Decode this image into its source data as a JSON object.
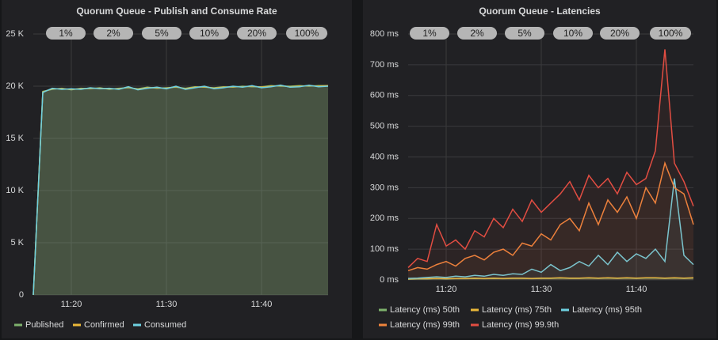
{
  "chart_data": [
    {
      "type": "line",
      "title": "Quorum Queue - Publish and Consume Rate",
      "area": true,
      "grid": true,
      "annotations": [
        "1%",
        "2%",
        "5%",
        "10%",
        "20%",
        "100%"
      ],
      "x": [
        "11:16",
        "11:17",
        "11:18",
        "11:19",
        "11:20",
        "11:21",
        "11:22",
        "11:23",
        "11:24",
        "11:25",
        "11:26",
        "11:27",
        "11:28",
        "11:29",
        "11:30",
        "11:31",
        "11:32",
        "11:33",
        "11:34",
        "11:35",
        "11:36",
        "11:37",
        "11:38",
        "11:39",
        "11:40",
        "11:41",
        "11:42",
        "11:43",
        "11:44",
        "11:45",
        "11:46",
        "11:47"
      ],
      "xlim": [
        "11:16",
        "11:47"
      ],
      "xticks": [
        "11:20",
        "11:30",
        "11:40"
      ],
      "ylim": [
        0,
        25000
      ],
      "yticks": [
        {
          "value": 0,
          "label": "0"
        },
        {
          "value": 5000,
          "label": "5 K"
        },
        {
          "value": 10000,
          "label": "10 K"
        },
        {
          "value": 15000,
          "label": "15 K"
        },
        {
          "value": 20000,
          "label": "20 K"
        },
        {
          "value": 25000,
          "label": "25 K"
        }
      ],
      "series": [
        {
          "name": "Published",
          "color": "#7eb26d",
          "values": [
            0,
            19500,
            19700,
            19800,
            19650,
            19800,
            19750,
            19850,
            19700,
            19800,
            19850,
            19750,
            19900,
            19800,
            19850,
            19900,
            19800,
            19950,
            19900,
            19850,
            19950,
            19900,
            20000,
            19950,
            19950,
            20050,
            20000,
            20000,
            20050,
            20000,
            20050,
            20050
          ]
        },
        {
          "name": "Confirmed",
          "color": "#eab839",
          "values": [
            0,
            19450,
            19750,
            19750,
            19700,
            19750,
            19800,
            19800,
            19750,
            19750,
            19900,
            19700,
            19850,
            19850,
            19800,
            19950,
            19750,
            19900,
            19950,
            19800,
            19900,
            19950,
            19950,
            20000,
            19900,
            20000,
            20050,
            19950,
            20000,
            20050,
            20000,
            20050
          ]
        },
        {
          "name": "Consumed",
          "color": "#6ed0e0",
          "values": [
            0,
            19400,
            19800,
            19700,
            19750,
            19700,
            19850,
            19750,
            19800,
            19700,
            19950,
            19650,
            19800,
            19900,
            19750,
            20000,
            19700,
            19850,
            20000,
            19750,
            19850,
            20000,
            19900,
            20050,
            19850,
            19950,
            20100,
            19900,
            19950,
            20100,
            19950,
            20000
          ]
        }
      ]
    },
    {
      "type": "line",
      "title": "Quorum Queue - Latencies",
      "area": true,
      "grid": true,
      "annotations": [
        "1%",
        "2%",
        "5%",
        "10%",
        "20%",
        "100%"
      ],
      "x": [
        "11:16",
        "11:17",
        "11:18",
        "11:19",
        "11:20",
        "11:21",
        "11:22",
        "11:23",
        "11:24",
        "11:25",
        "11:26",
        "11:27",
        "11:28",
        "11:29",
        "11:30",
        "11:31",
        "11:32",
        "11:33",
        "11:34",
        "11:35",
        "11:36",
        "11:37",
        "11:38",
        "11:39",
        "11:40",
        "11:41",
        "11:42",
        "11:43",
        "11:44",
        "11:45",
        "11:46"
      ],
      "xlim": [
        "11:16",
        "11:46"
      ],
      "xticks": [
        "11:20",
        "11:30",
        "11:40"
      ],
      "ylim": [
        0,
        800
      ],
      "yticks": [
        {
          "value": 0,
          "label": "0 ms"
        },
        {
          "value": 100,
          "label": "100 ms"
        },
        {
          "value": 200,
          "label": "200 ms"
        },
        {
          "value": 300,
          "label": "300 ms"
        },
        {
          "value": 400,
          "label": "400 ms"
        },
        {
          "value": 500,
          "label": "500 ms"
        },
        {
          "value": 600,
          "label": "600 ms"
        },
        {
          "value": 700,
          "label": "700 ms"
        },
        {
          "value": 800,
          "label": "800 ms"
        }
      ],
      "series": [
        {
          "name": "Latency (ms) 50th",
          "color": "#7eb26d",
          "values": [
            2,
            3,
            3,
            4,
            3,
            4,
            4,
            5,
            4,
            5,
            4,
            5,
            5,
            4,
            5,
            5,
            6,
            5,
            5,
            6,
            5,
            6,
            5,
            6,
            5,
            6,
            6,
            5,
            6,
            5,
            6
          ]
        },
        {
          "name": "Latency (ms) 75th",
          "color": "#eab839",
          "values": [
            3,
            4,
            4,
            5,
            4,
            5,
            5,
            6,
            5,
            6,
            5,
            6,
            6,
            5,
            6,
            6,
            7,
            6,
            6,
            7,
            6,
            7,
            6,
            7,
            6,
            7,
            7,
            6,
            7,
            6,
            7
          ]
        },
        {
          "name": "Latency (ms) 95th",
          "color": "#6ed0e0",
          "values": [
            5,
            6,
            8,
            10,
            8,
            12,
            10,
            15,
            12,
            18,
            15,
            20,
            18,
            35,
            25,
            50,
            30,
            40,
            60,
            45,
            80,
            50,
            90,
            60,
            85,
            70,
            100,
            60,
            330,
            80,
            50
          ]
        },
        {
          "name": "Latency (ms) 99th",
          "color": "#ef843c",
          "values": [
            30,
            40,
            35,
            50,
            60,
            45,
            70,
            80,
            65,
            90,
            100,
            80,
            120,
            110,
            150,
            130,
            180,
            200,
            160,
            250,
            180,
            260,
            220,
            270,
            200,
            300,
            250,
            380,
            300,
            280,
            180
          ]
        },
        {
          "name": "Latency (ms) 99.9th",
          "color": "#e24d42",
          "values": [
            40,
            70,
            60,
            180,
            110,
            130,
            100,
            160,
            140,
            200,
            170,
            230,
            190,
            260,
            220,
            250,
            280,
            320,
            260,
            340,
            300,
            330,
            280,
            350,
            310,
            330,
            420,
            750,
            380,
            320,
            240
          ]
        }
      ]
    }
  ]
}
